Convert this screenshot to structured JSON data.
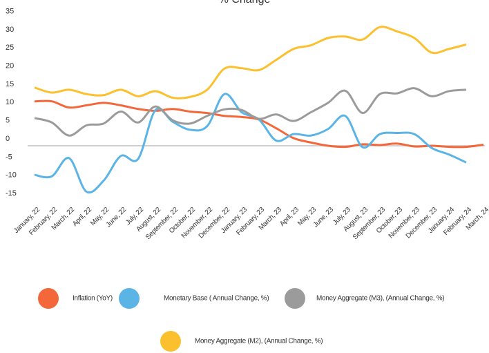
{
  "chart_data": {
    "type": "line",
    "title": "% Change",
    "categories": [
      "January, 22",
      "February, 22",
      "March, 22",
      "April, 22",
      "May, 22",
      "June, 22",
      "July, 22",
      "August, 22",
      "September, 22",
      "October, 22",
      "November, 22",
      "December, 22",
      "January, 23",
      "February, 23",
      "March, 23",
      "April, 23",
      "May, 23",
      "June, 23",
      "July, 23",
      "August, 23",
      "September, 23",
      "October, 23",
      "November, 23",
      "December, 23",
      "January, 24",
      "February, 24",
      "March, 24"
    ],
    "series": [
      {
        "name": "Inflation (YoY)",
        "color": "#f4673a",
        "values": [
          12.2,
          12.2,
          10.5,
          11.1,
          11.8,
          11.1,
          10.1,
          9.6,
          10.1,
          9.4,
          9.0,
          8.2,
          7.9,
          7.2,
          4.8,
          2.1,
          0.9,
          0.0,
          -0.3,
          0.4,
          0.2,
          0.6,
          -0.2,
          0.0,
          -0.3,
          -0.3,
          0.3
        ]
      },
      {
        "name": "Monetary Base ( Annual Change, %)",
        "color": "#5ab4e5",
        "values": [
          -8,
          -8.4,
          -3.4,
          -12.6,
          -9.6,
          -2.8,
          -3.6,
          9.8,
          6.6,
          4.4,
          5.4,
          14.2,
          9.2,
          7.2,
          1.4,
          3.2,
          2.8,
          4.6,
          8.2,
          -0.4,
          3.2,
          3.5,
          3.2,
          -0.6,
          -2.4,
          -4.6,
          null
        ]
      },
      {
        "name": "Money Aggregate (M3), (Annual Change, %)",
        "color": "#9b9b9b",
        "values": [
          7.6,
          6.4,
          2.8,
          5.6,
          6.1,
          9.4,
          6.4,
          10.8,
          7.0,
          6.1,
          8.2,
          10.0,
          9.8,
          7.4,
          8.6,
          6.8,
          9.2,
          11.8,
          15.1,
          9.0,
          14.2,
          14.4,
          15.8,
          13.6,
          15.0,
          15.4,
          null
        ]
      },
      {
        "name": "Money Aggregate (M2), (Annual Change, %)",
        "color": "#fbc02d",
        "values": [
          16.0,
          14.6,
          15.4,
          14.2,
          13.9,
          15.4,
          13.6,
          15.0,
          13.2,
          13.4,
          15.4,
          21.2,
          21.3,
          20.8,
          23.6,
          26.6,
          27.6,
          29.6,
          30.0,
          29.2,
          32.6,
          31.4,
          29.6,
          25.6,
          26.6,
          27.8,
          null
        ]
      }
    ],
    "ylim": [
      -15,
      35
    ],
    "yticks": [
      -15,
      -10,
      -5,
      0,
      5,
      10,
      15,
      20,
      25,
      30,
      35
    ],
    "grid": false
  }
}
